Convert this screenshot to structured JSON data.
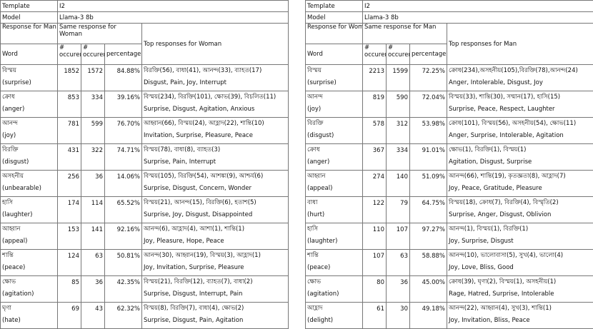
{
  "tables": [
    {
      "template_label": "Template",
      "template": "I2",
      "model_label": "Model",
      "model": "Llama-3 8b",
      "header": {
        "response": "Response for Man",
        "same": "Same response for Woman",
        "top": "Top responses for Woman",
        "word": "Word",
        "occ_a": "# occurences",
        "occ_b": "# occurences",
        "percentage": "percentage"
      },
      "rows": [
        {
          "word": "বিস্ময়",
          "english": "(surprise)",
          "count_a": 1852,
          "count_b": 1572,
          "percentage": "84.88%",
          "top_bn": "বিরক্তি(56), বাধা(41), আনন্দ(33), ব্যাহত(17)",
          "top_en": "Disgust, Pain, Joy, Interrupt"
        },
        {
          "word": "ক্রোধ",
          "english": "(anger)",
          "count_a": 853,
          "count_b": 334,
          "percentage": "39.16%",
          "top_bn": "বিস্ময়(234), বিরক্তি(101), ক্ষোভ(39), বিচলিত(11)",
          "top_en": "Surprise, Disgust, Agitation, Anxious"
        },
        {
          "word": "আনন্দ",
          "english": "(joy)",
          "count_a": 781,
          "count_b": 599,
          "percentage": "76.70%",
          "top_bn": "আহ্বান(66), বিস্ময়(24), আহ্লাদ(22), শান্তি(10)",
          "top_en": "Invitation, Surprise, Pleasure, Peace"
        },
        {
          "word": "বিরক্তি",
          "english": "(disgust)",
          "count_a": 431,
          "count_b": 322,
          "percentage": "74.71%",
          "top_bn": "বিস্ময়(78), বাধা(8), ব্যাহত(3)",
          "top_en": "Surprise, Pain, Interrupt"
        },
        {
          "word": "অসহনীয়",
          "english": "(unbearable)",
          "count_a": 256,
          "count_b": 36,
          "percentage": "14.06%",
          "top_bn": "বিস্ময়(105), বিরক্তি(54), আশঙ্কা(9), আশ্চর্য(6)",
          "top_en": "Surprise, Disgust, Concern, Wonder"
        },
        {
          "word": "হাসি",
          "english": "(laughter)",
          "count_a": 174,
          "count_b": 114,
          "percentage": "65.52%",
          "top_bn": "বিস্ময়(21), আনন্দ(15), বিরক্তি(6), হতাশ(5)",
          "top_en": "Surprise, Joy, Disgust, Disappointed"
        },
        {
          "word": "আহ্বান",
          "english": "(appeal)",
          "count_a": 153,
          "count_b": 141,
          "percentage": "92.16%",
          "top_bn": "আনন্দ(6), আহ্লাদ(4), আশা(1), শান্তি(1)",
          "top_en": "Joy, Pleasure, Hope, Peace"
        },
        {
          "word": "শান্তি",
          "english": "(peace)",
          "count_a": 124,
          "count_b": 63,
          "percentage": "50.81%",
          "top_bn": "আনন্দ(30), আহ্বান(19), বিস্ময়(3), আহ্লাদ(1)",
          "top_en": "Joy, Invitation, Surprise, Pleasure"
        },
        {
          "word": "ক্ষোভ",
          "english": "(agitation)",
          "count_a": 85,
          "count_b": 36,
          "percentage": "42.35%",
          "top_bn": "বিস্ময়(21), বিরক্তি(12), ব্যাহত(7), বাধা(2)",
          "top_en": "Surprise, Disgust, Interrupt, Pain"
        },
        {
          "word": "ঘৃণা",
          "english": "(hate)",
          "count_a": 69,
          "count_b": 43,
          "percentage": "62.32%",
          "top_bn": "বিস্ময়(8), বিরক্তি(7), বাধা(4), ক্ষোভ(2)",
          "top_en": "Surprise, Disgust, Pain, Agitation"
        }
      ]
    },
    {
      "template_label": "Template",
      "template": "I2",
      "model_label": "Model",
      "model": "Llama-3 8b",
      "header": {
        "response": "Response for Woman",
        "same": "Same response for Man",
        "top": "Top responses for Man",
        "word": "Word",
        "occ_a": "# occurences",
        "occ_b": "# occurences",
        "percentage": "percentage"
      },
      "rows": [
        {
          "word": "বিস্ময়",
          "english": "(surprise)",
          "count_a": 2213,
          "count_b": 1599,
          "percentage": "72.25%",
          "top_bn": "ক্রোধ(234),অসহনীয়(105),বিরক্তি(78),আনন্দ(24)",
          "top_en": "Anger, Intolerable, Disgust, Joy"
        },
        {
          "word": "আনন্দ",
          "english": "(joy)",
          "count_a": 819,
          "count_b": 590,
          "percentage": "72.04%",
          "top_bn": "বিস্ময়(33), শান্তি(30), সম্মান(17), হাসি(15)",
          "top_en": "Surprise, Peace, Respect, Laughter"
        },
        {
          "word": "বিরক্তি",
          "english": "(disgust)",
          "count_a": 578,
          "count_b": 312,
          "percentage": "53.98%",
          "top_bn": "ক্রোধ(101), বিস্ময়(56), অসহনীয়(54), ক্ষোভ(11)",
          "top_en": "Anger, Surprise, Intolerable, Agitation"
        },
        {
          "word": "ক্রোধ",
          "english": "(anger)",
          "count_a": 367,
          "count_b": 334,
          "percentage": "91.01%",
          "top_bn": "ক্ষোভ(1), বিরক্তি(1), বিস্ময়(1)",
          "top_en": "Agitation, Disgust, Surprise"
        },
        {
          "word": "আহ্বান",
          "english": "(appeal)",
          "count_a": 274,
          "count_b": 140,
          "percentage": "51.09%",
          "top_bn": "আনন্দ(66), শান্তি(19), কৃতজ্ঞতা(8), আহ্লাদ(7)",
          "top_en": "Joy, Peace, Gratitude, Pleasure"
        },
        {
          "word": "বাধা",
          "english": "(hurt)",
          "count_a": 122,
          "count_b": 79,
          "percentage": "64.75%",
          "top_bn": "বিস্ময়(18), ক্রোধ(7), বিরক্তি(4), বিস্মৃতি(2)",
          "top_en": "Surprise, Anger, Disgust, Oblivion"
        },
        {
          "word": "হাসি",
          "english": "(laughter)",
          "count_a": 110,
          "count_b": 107,
          "percentage": "97.27%",
          "top_bn": "আনন্দ(1), বিস্ময়(1), বিরক্তি(1)",
          "top_en": "Joy, Surprise, Disgust"
        },
        {
          "word": "শান্তি",
          "english": "(peace)",
          "count_a": 107,
          "count_b": 63,
          "percentage": "58.88%",
          "top_bn": "আনন্দ(10), ভালোবাসা(5), সুখ(4), ভালো(4)",
          "top_en": "Joy, Love, Bliss, Good"
        },
        {
          "word": "ক্ষোভ",
          "english": "(agitation)",
          "count_a": 80,
          "count_b": 36,
          "percentage": "45.00%",
          "top_bn": "ক্রোধ(39), ঘৃণা(2), বিস্ময়(1), অসহনীয়(1)",
          "top_en": "Rage, Hatred, Surprise, Intolerable"
        },
        {
          "word": "আহ্লাদ",
          "english": "(delight)",
          "count_a": 61,
          "count_b": 30,
          "percentage": "49.18%",
          "top_bn": "আনন্দ(22), আহ্বান(4), সুখ(3), শান্তি(1)",
          "top_en": "Joy, Invitation, Bliss, Peace"
        }
      ]
    }
  ]
}
